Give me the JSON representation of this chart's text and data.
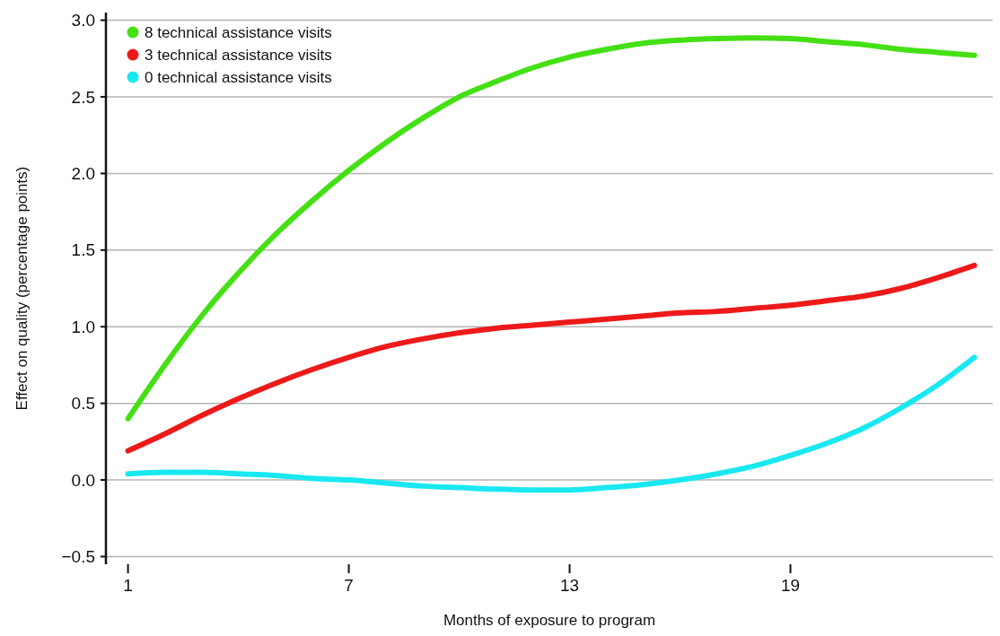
{
  "chart_data": {
    "type": "line",
    "xlabel": "Months of exposure to program",
    "ylabel": "Effect on quality (percentage points)",
    "x": [
      1,
      2,
      3,
      4,
      5,
      6,
      7,
      8,
      9,
      10,
      11,
      12,
      13,
      14,
      15,
      16,
      17,
      18,
      19,
      20,
      21,
      22,
      23,
      24
    ],
    "series": [
      {
        "name": "8 technical assistance visits",
        "color": "#44e014",
        "values": [
          0.4,
          0.75,
          1.07,
          1.35,
          1.6,
          1.82,
          2.02,
          2.2,
          2.36,
          2.5,
          2.6,
          2.69,
          2.76,
          2.81,
          2.85,
          2.87,
          2.88,
          2.885,
          2.88,
          2.86,
          2.84,
          2.81,
          2.79,
          2.77
        ]
      },
      {
        "name": "3 technical assistance visits",
        "color": "#ee1a1a",
        "values": [
          0.19,
          0.3,
          0.42,
          0.53,
          0.63,
          0.72,
          0.8,
          0.87,
          0.92,
          0.96,
          0.99,
          1.01,
          1.03,
          1.05,
          1.07,
          1.09,
          1.1,
          1.12,
          1.14,
          1.17,
          1.2,
          1.25,
          1.32,
          1.4
        ]
      },
      {
        "name": "0 technical assistance visits",
        "color": "#1ae8f0",
        "values": [
          0.04,
          0.05,
          0.05,
          0.04,
          0.03,
          0.01,
          0.0,
          -0.02,
          -0.04,
          -0.05,
          -0.06,
          -0.065,
          -0.065,
          -0.05,
          -0.03,
          0.0,
          0.04,
          0.09,
          0.16,
          0.24,
          0.34,
          0.47,
          0.62,
          0.8
        ]
      }
    ],
    "xlim": [
      0.4,
      24.5
    ],
    "xticks": [
      1,
      7,
      13,
      19
    ],
    "ylim": [
      -0.55,
      3.05
    ],
    "yticks": [
      {
        "value": -0.5,
        "label": "−0.5"
      },
      {
        "value": 0,
        "label": "0.0"
      },
      {
        "value": 0.5,
        "label": "0.5"
      },
      {
        "value": 1,
        "label": "1.0"
      },
      {
        "value": 1.5,
        "label": "1.5"
      },
      {
        "value": 2,
        "label": "2.0"
      },
      {
        "value": 2.5,
        "label": "2.5"
      },
      {
        "value": 3,
        "label": "3.0"
      }
    ],
    "grid": "y",
    "legend": "top left",
    "line_style": "solid"
  }
}
